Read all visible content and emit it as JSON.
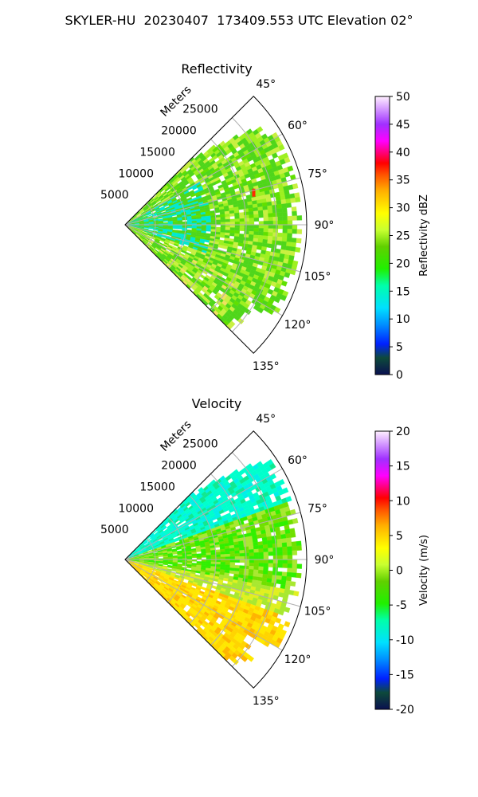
{
  "figure": {
    "suptitle": "SKYLER-HU  20230407  173409.553 UTC Elevation 02°"
  },
  "chart_data": [
    {
      "type": "polar_sector",
      "title": "Reflectivity",
      "range_label": "Meters",
      "range_ticks": [
        5000,
        10000,
        15000,
        20000,
        25000
      ],
      "angle_ticks": [
        "45°",
        "60°",
        "75°",
        "90°",
        "105°",
        "120°",
        "135°"
      ],
      "theta_range_deg": [
        45,
        135
      ],
      "rmax": 30000,
      "colorbar": {
        "label": "Reflectivity dBZ",
        "range": [
          0,
          50
        ],
        "ticks": [
          0,
          5,
          10,
          15,
          20,
          25,
          30,
          35,
          40,
          45,
          50
        ]
      },
      "dominant_field": "green 15–22 dBZ returns, cyan ~12 dBZ near radar, isolated red ~35 dBZ speck near 75°",
      "grid": true
    },
    {
      "type": "polar_sector",
      "title": "Velocity",
      "range_label": "Meters",
      "range_ticks": [
        5000,
        10000,
        15000,
        20000,
        25000
      ],
      "angle_ticks": [
        "45°",
        "60°",
        "75°",
        "90°",
        "105°",
        "120°",
        "135°"
      ],
      "theta_range_deg": [
        45,
        135
      ],
      "rmax": 30000,
      "colorbar": {
        "label": "Velocity (m/s)",
        "range": [
          -20,
          20
        ],
        "ticks": [
          -20,
          -15,
          -10,
          -5,
          0,
          5,
          10,
          15,
          20
        ]
      },
      "dominant_field": "cyan ~-10 m/s near 45–70°, green ~-5 m/s near 75–100°, yellow ~0 to +3 m/s near 110–135°",
      "grid": true
    }
  ]
}
